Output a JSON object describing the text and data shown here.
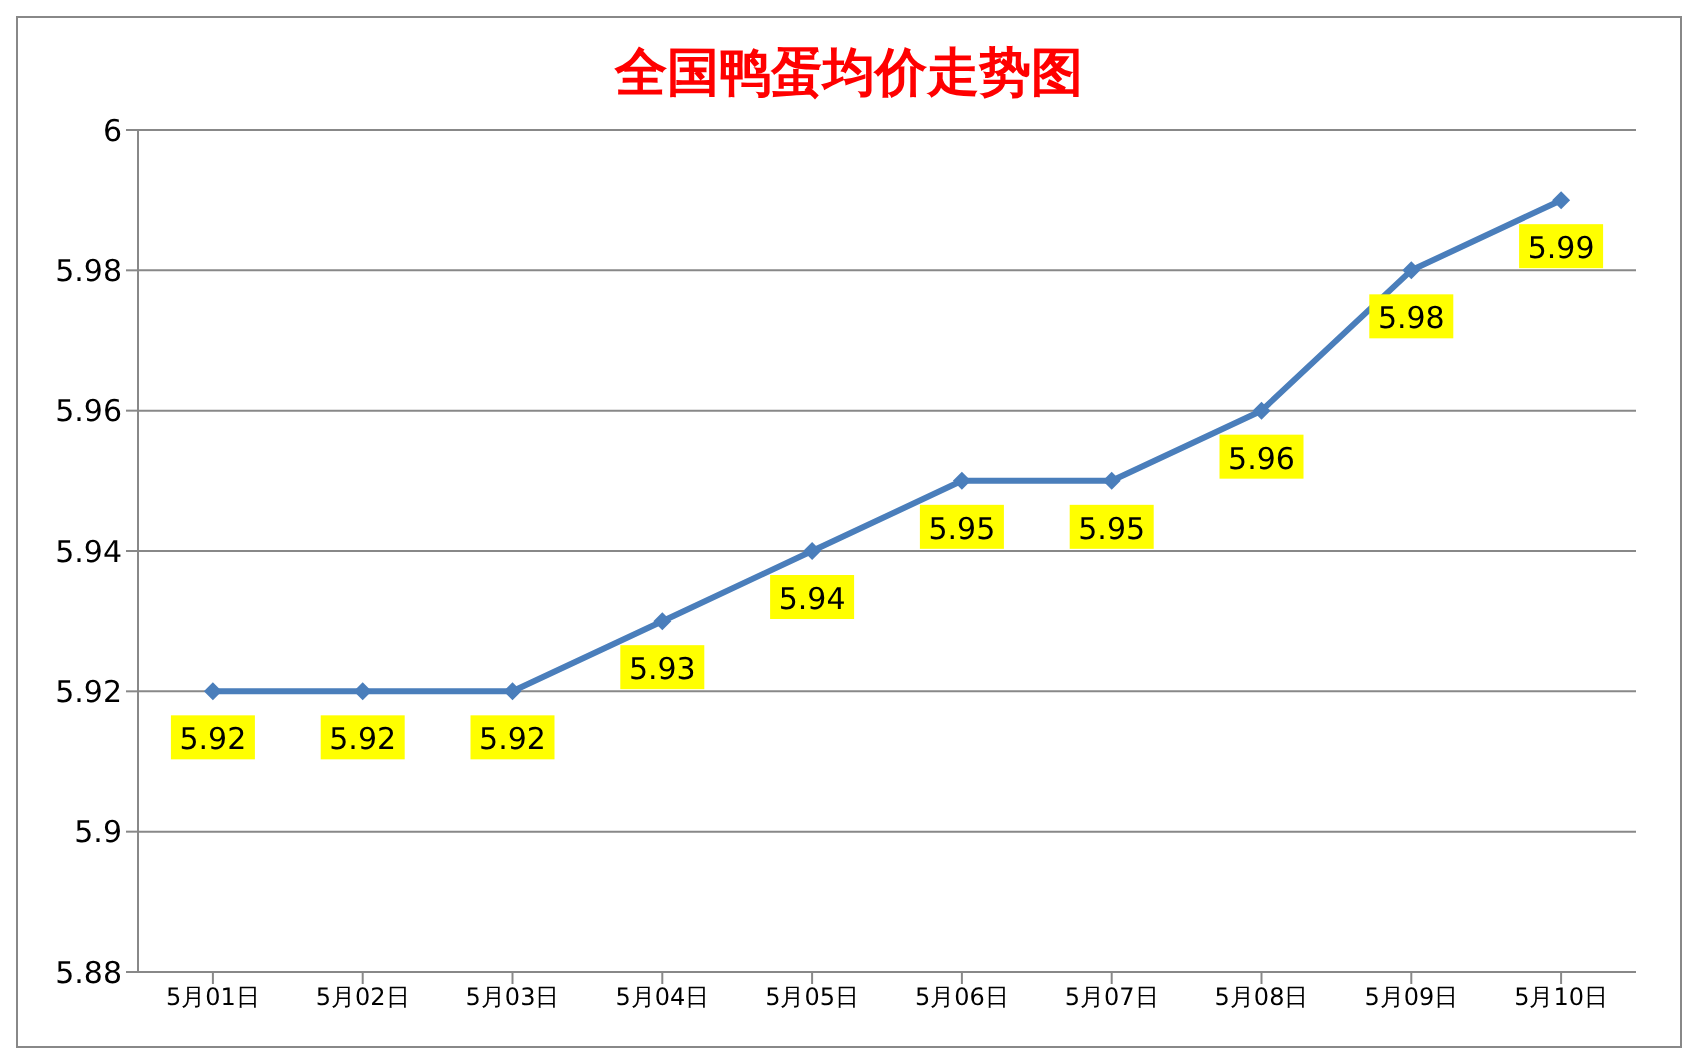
{
  "chart_data": {
    "type": "line",
    "title": "全国鸭蛋均价走势图",
    "categories": [
      "5月01日",
      "5月02日",
      "5月03日",
      "5月04日",
      "5月05日",
      "5月06日",
      "5月07日",
      "5月08日",
      "5月09日",
      "5月10日"
    ],
    "series": [
      {
        "color": "#4a7ebb",
        "values": [
          5.92,
          5.92,
          5.92,
          5.93,
          5.94,
          5.95,
          5.95,
          5.96,
          5.98,
          5.99
        ]
      }
    ],
    "ylim": [
      5.88,
      6
    ],
    "yticks": [
      5.88,
      5.9,
      5.92,
      5.94,
      5.96,
      5.98,
      6
    ],
    "grid": "y",
    "marker": "diamond",
    "line_style": "solid",
    "data_labels": true
  }
}
